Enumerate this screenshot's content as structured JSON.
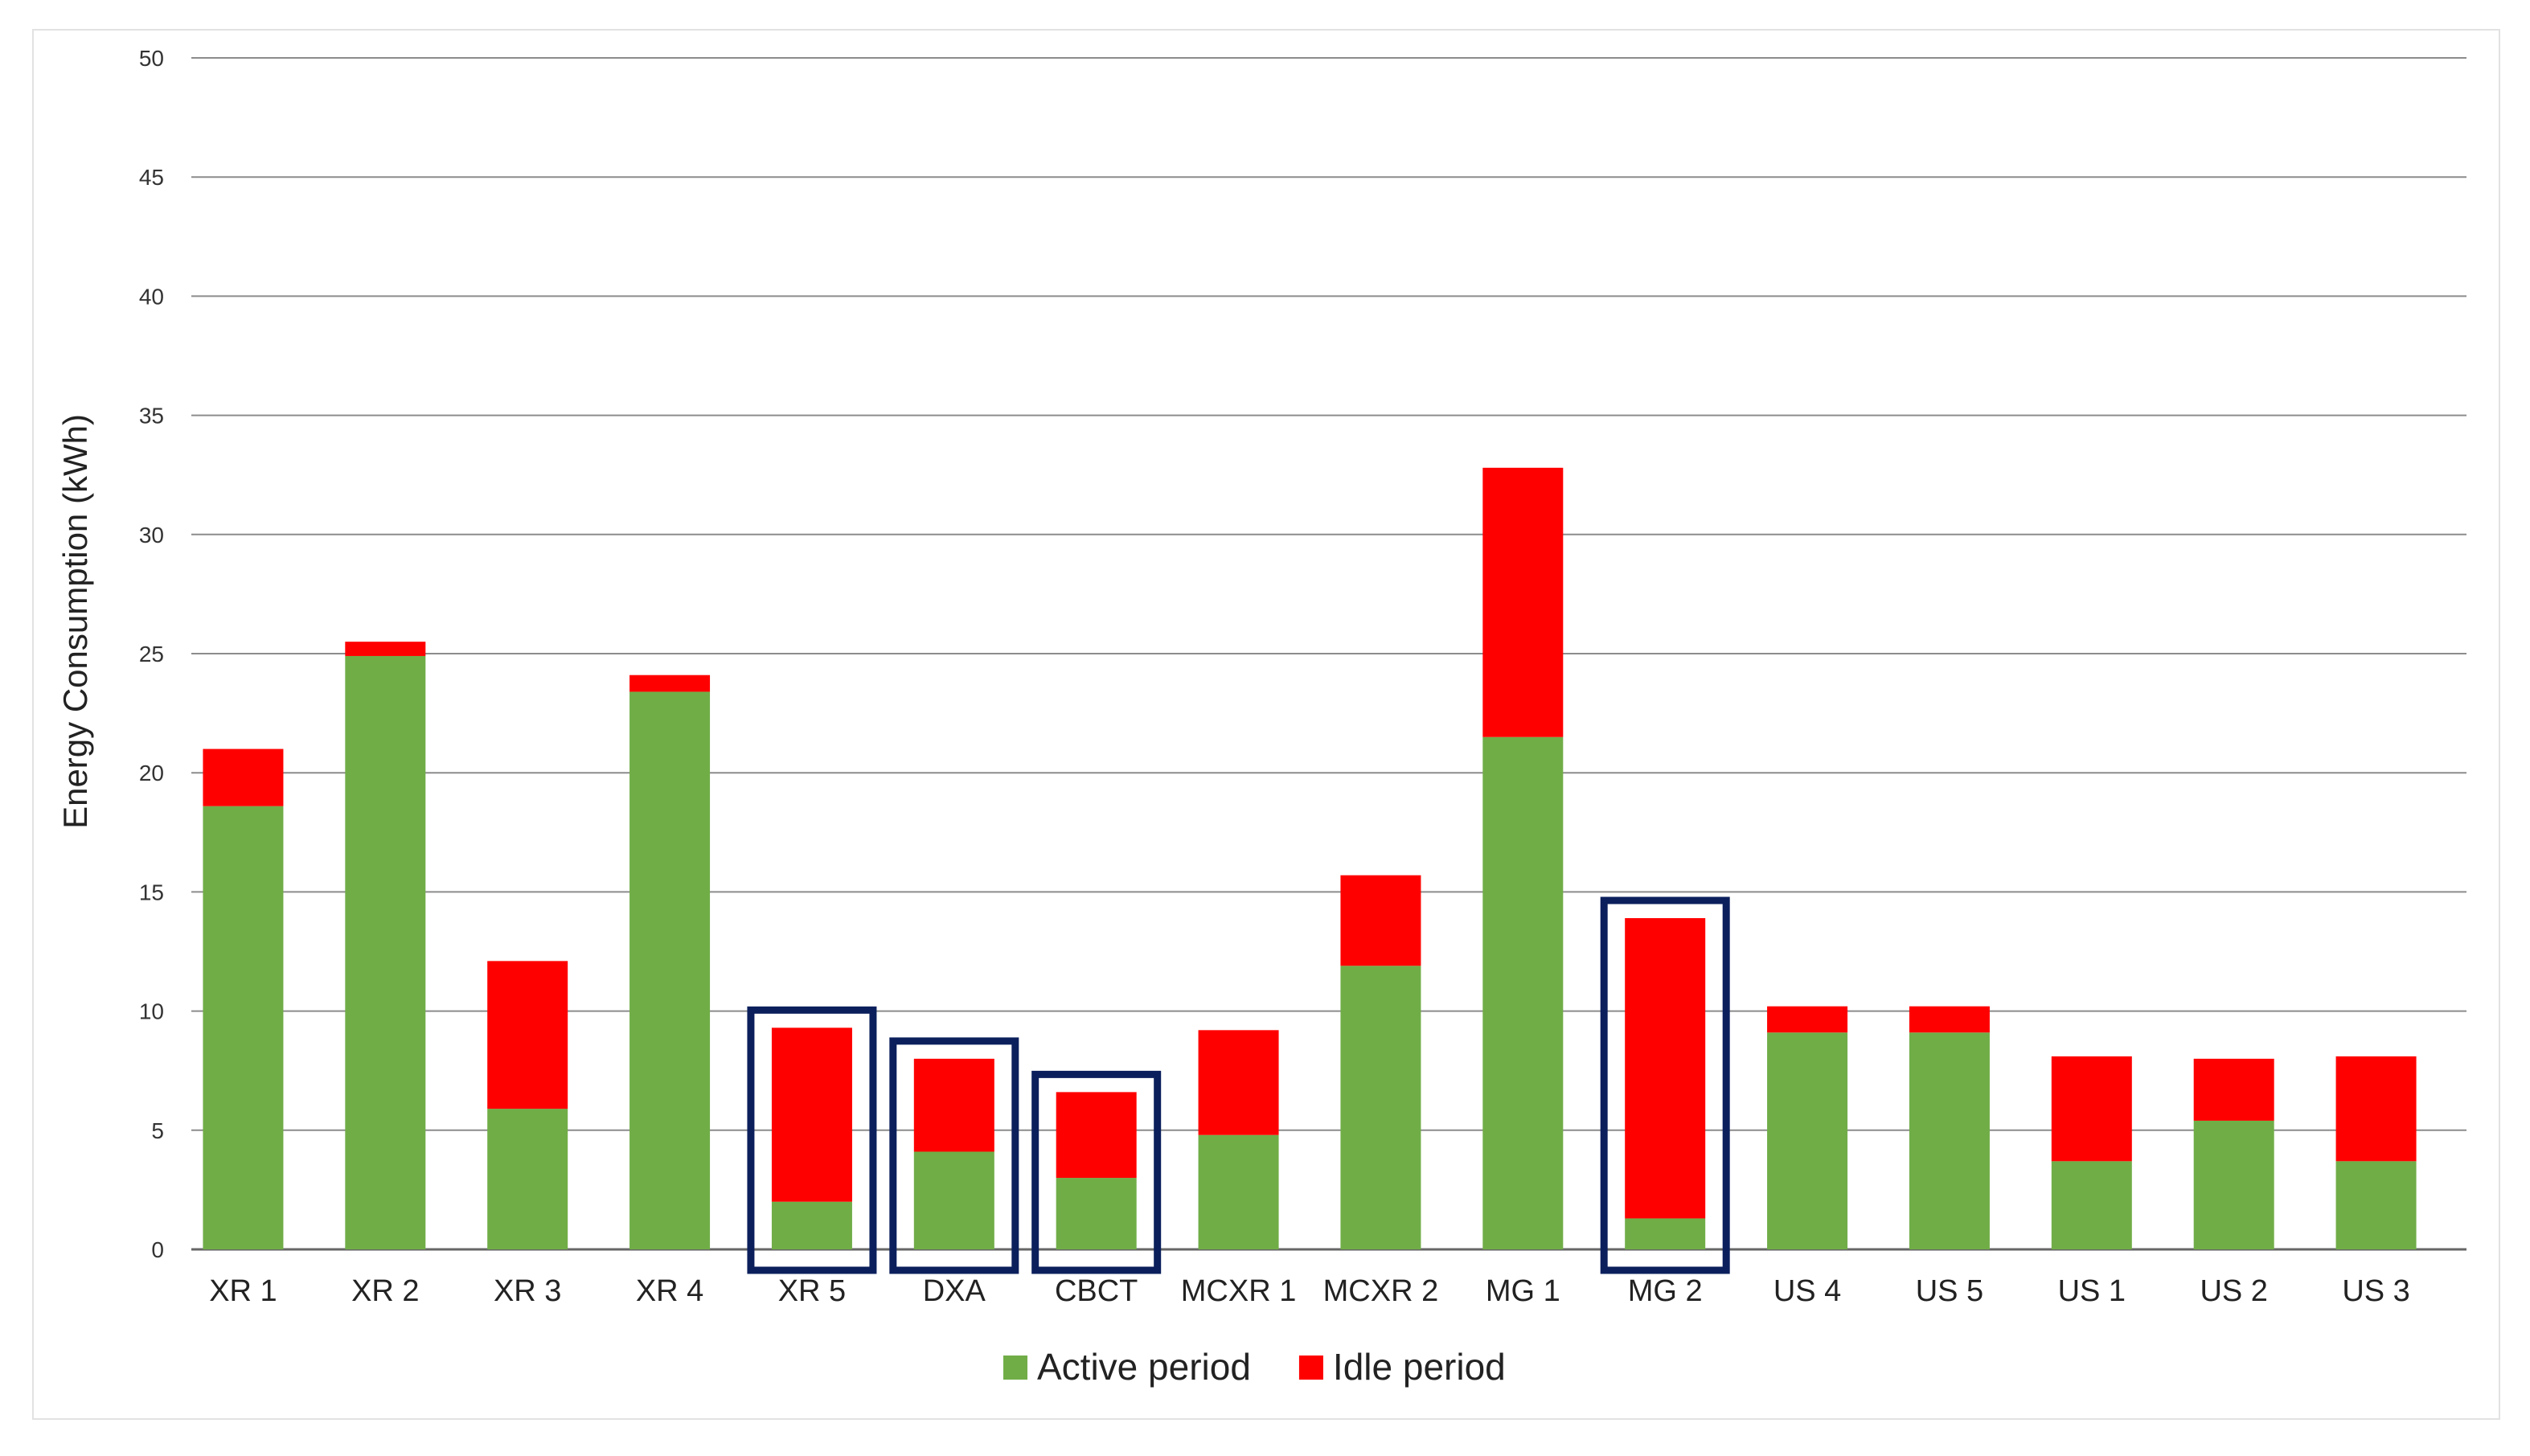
{
  "chart_data": {
    "type": "bar",
    "stacked": true,
    "title": "",
    "xlabel": "",
    "ylabel": "Energy Consumption (kWh)",
    "ylim": [
      0,
      50
    ],
    "yticks": [
      0,
      5,
      10,
      15,
      20,
      25,
      30,
      35,
      40,
      45,
      50
    ],
    "grid": true,
    "legend_position": "bottom-center",
    "categories": [
      "XR 1",
      "XR 2",
      "XR 3",
      "XR 4",
      "XR 5",
      "DXA",
      "CBCT",
      "MCXR 1",
      "MCXR 2",
      "MG 1",
      "MG 2",
      "US 4",
      "US 5",
      "US 1",
      "US 2",
      "US 3"
    ],
    "series": [
      {
        "name": "Active period",
        "color": "#70ad47",
        "values": [
          18.6,
          24.9,
          5.9,
          23.4,
          2.0,
          4.1,
          3.0,
          4.8,
          11.9,
          21.5,
          1.3,
          9.1,
          9.1,
          3.7,
          5.4,
          3.7
        ]
      },
      {
        "name": "Idle period",
        "color": "#ff0000",
        "values": [
          2.4,
          0.6,
          6.2,
          0.7,
          7.3,
          3.9,
          3.6,
          4.4,
          3.8,
          11.3,
          12.6,
          1.1,
          1.1,
          4.4,
          2.6,
          4.4
        ]
      }
    ],
    "highlighted": [
      "XR 5",
      "DXA",
      "CBCT",
      "MG 2"
    ],
    "highlight_color": "#0b1f5c"
  }
}
